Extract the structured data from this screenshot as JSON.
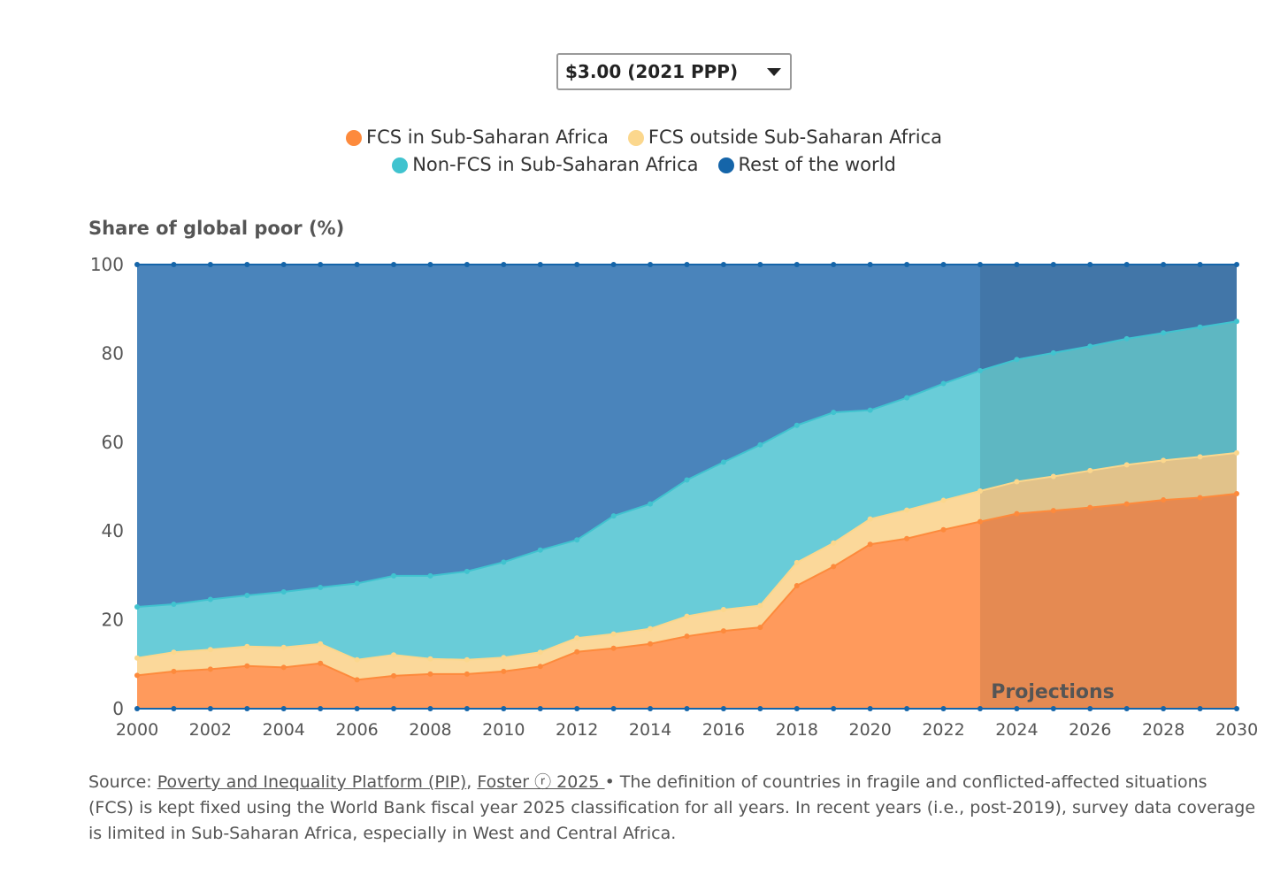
{
  "dropdown": {
    "selected": "$3.00 (2021 PPP)"
  },
  "colors": {
    "fcs_ssa": "#fd8a3c",
    "fcs_outside": "#fbd78d",
    "nonfcs_ssa": "#40c3cf",
    "rest": "#1565a9"
  },
  "legend": [
    {
      "label": "FCS in Sub-Saharan Africa",
      "color": "#fd8a3c"
    },
    {
      "label": "FCS outside Sub-Saharan Africa",
      "color": "#fbd78d"
    },
    {
      "label": "Non-FCS in Sub-Saharan Africa",
      "color": "#40c3cf"
    },
    {
      "label": "Rest of the world",
      "color": "#1565a9"
    }
  ],
  "chart_data": {
    "type": "area",
    "stacked": true,
    "ylabel": "Share of global poor (%)",
    "ylim": [
      0,
      100
    ],
    "yticks": [
      0,
      20,
      40,
      60,
      80,
      100
    ],
    "xlim": [
      2000,
      2030
    ],
    "xticks": [
      2000,
      2002,
      2004,
      2006,
      2008,
      2010,
      2012,
      2014,
      2016,
      2018,
      2020,
      2022,
      2024,
      2026,
      2028,
      2030
    ],
    "x": [
      2000,
      2001,
      2002,
      2003,
      2004,
      2005,
      2006,
      2007,
      2008,
      2009,
      2010,
      2011,
      2012,
      2013,
      2014,
      2015,
      2016,
      2017,
      2018,
      2019,
      2020,
      2021,
      2022,
      2023,
      2024,
      2025,
      2026,
      2027,
      2028,
      2029,
      2030
    ],
    "cumulative_top": {
      "FCS in Sub-Saharan Africa": [
        7.5,
        8.4,
        8.9,
        9.6,
        9.3,
        10.2,
        6.5,
        7.4,
        7.8,
        7.8,
        8.4,
        9.5,
        12.8,
        13.6,
        14.6,
        16.3,
        17.5,
        18.3,
        27.7,
        32,
        37,
        38.3,
        40.3,
        42.1,
        43.9,
        44.6,
        45.3,
        46.1,
        47,
        47.5,
        48.4
      ],
      "FCS outside Sub-Saharan Africa": [
        11.4,
        12.7,
        13.3,
        14,
        13.8,
        14.6,
        11,
        12.1,
        11.2,
        11,
        11.5,
        12.7,
        15.9,
        16.8,
        18,
        20.8,
        22.3,
        23.2,
        32.9,
        37.3,
        42.7,
        44.7,
        46.9,
        49,
        51.1,
        52.3,
        53.6,
        54.9,
        55.9,
        56.7,
        57.6
      ],
      "Non-FCS in Sub-Saharan Africa": [
        22.9,
        23.5,
        24.6,
        25.5,
        26.3,
        27.3,
        28.2,
        29.9,
        29.9,
        30.9,
        33,
        35.7,
        38,
        43.4,
        46.1,
        51.5,
        55.5,
        59.4,
        63.8,
        66.7,
        67.2,
        70,
        73.2,
        76.1,
        78.6,
        80.1,
        81.6,
        83.3,
        84.6,
        85.9,
        87.2
      ],
      "Rest of the world": [
        100,
        100,
        100,
        100,
        100,
        100,
        100,
        100,
        100,
        100,
        100,
        100,
        100,
        100,
        100,
        100,
        100,
        100,
        100,
        100,
        100,
        100,
        100,
        100,
        100,
        100,
        100,
        100,
        100,
        100,
        100
      ]
    },
    "projection_start": 2023,
    "annotation": "Projections"
  },
  "footer": {
    "prefix": "Source: ",
    "link1": "Poverty and Inequality Platform (PIP)",
    "sep": ", ",
    "link2": "Foster ⓡ 2025 ",
    "text": " • The definition of countries in fragile and conflicted-affected situations (FCS) is kept fixed using the World Bank fiscal year 2025 classification for all years. In recent years (i.e., post-2019), survey data coverage is limited in Sub-Saharan Africa, especially in West and Central Africa."
  }
}
